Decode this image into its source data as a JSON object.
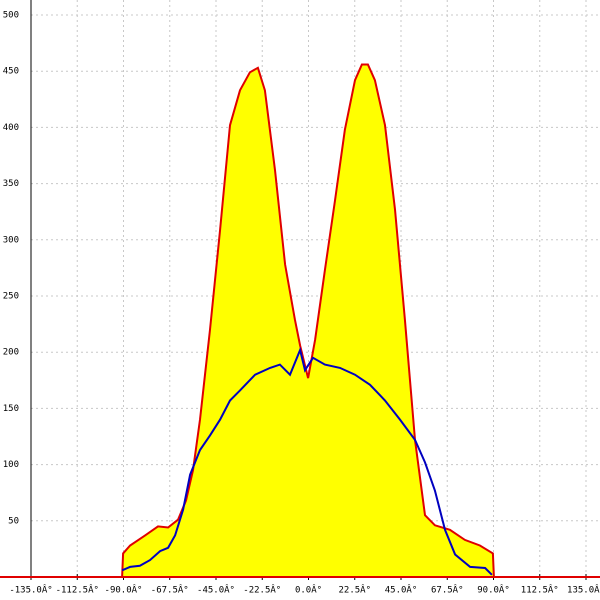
{
  "chart_data": {
    "type": "area-line",
    "xlim": [
      -135,
      135
    ],
    "ylim": [
      0,
      500
    ],
    "xticks": [
      {
        "value": -135,
        "label": "-135.0Â°"
      },
      {
        "value": -112.5,
        "label": "-112.5Â°"
      },
      {
        "value": -90,
        "label": "-90.0Â°"
      },
      {
        "value": -67.5,
        "label": "-67.5Â°"
      },
      {
        "value": -45,
        "label": "-45.0Â°"
      },
      {
        "value": -22.5,
        "label": "-22.5Â°"
      },
      {
        "value": 0,
        "label": "0.0Â°"
      },
      {
        "value": 22.5,
        "label": "22.5Â°"
      },
      {
        "value": 45,
        "label": "45.0Â°"
      },
      {
        "value": 67.5,
        "label": "67.5Â°"
      },
      {
        "value": 90,
        "label": "90.0Â°"
      },
      {
        "value": 112.5,
        "label": "112.5Â°"
      },
      {
        "value": 135,
        "label": "135.0Â°"
      }
    ],
    "yticks": [
      50,
      100,
      150,
      200,
      250,
      300,
      350,
      400,
      450,
      500
    ],
    "grid": true,
    "series": [
      {
        "color": "#e00000",
        "fill": "#ffff00",
        "x": [
          -90.7,
          -90.2,
          -86.8,
          -79.5,
          -73.2,
          -68.3,
          -63.5,
          -59.6,
          -56.2,
          -52.8,
          -47.9,
          -43,
          -38.2,
          -33.3,
          -28.5,
          -24.6,
          -21.2,
          -16.3,
          -11.4,
          -6.6,
          -4.1,
          -0.2,
          3.2,
          8,
          12.9,
          17.7,
          22.6,
          26,
          28.9,
          32.3,
          37.2,
          42.1,
          46.9,
          51.8,
          56.7,
          61.5,
          68.8,
          76.1,
          83.4,
          89.7,
          90.2
        ],
        "values": [
          0,
          21,
          28,
          37,
          45,
          44,
          51,
          68,
          95,
          140,
          220,
          309,
          402,
          433,
          449,
          453,
          433,
          362,
          278,
          229,
          206,
          177,
          211,
          273,
          335,
          398,
          442,
          456,
          456,
          442,
          402,
          327,
          229,
          122,
          55,
          46,
          42,
          33,
          28,
          21,
          0
        ]
      },
      {
        "color": "#0000c0",
        "x": [
          -90.7,
          -86.8,
          -82,
          -77.1,
          -72.2,
          -68.3,
          -64.9,
          -61,
          -57.6,
          -52.8,
          -47.9,
          -43,
          -38.2,
          -33.3,
          -26,
          -18.7,
          -13.9,
          -9,
          -4.1,
          -1.7,
          2.2,
          8,
          15.3,
          22.6,
          29.9,
          37.2,
          44.5,
          51.8,
          56.7,
          61.5,
          66.4,
          71.3,
          78.6,
          85.9,
          89.2
        ],
        "values": [
          6,
          9,
          10,
          15,
          23,
          26,
          37,
          60,
          91,
          113,
          126,
          140,
          157,
          166,
          180,
          186,
          189,
          180,
          202,
          184,
          195,
          189,
          186,
          180,
          171,
          157,
          140,
          122,
          102,
          77,
          42,
          20,
          9,
          8,
          2
        ]
      }
    ]
  }
}
